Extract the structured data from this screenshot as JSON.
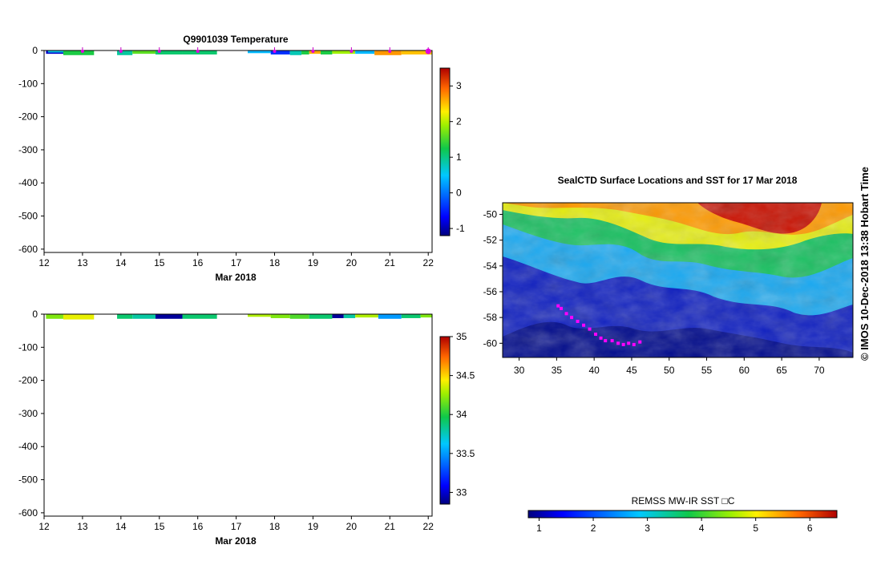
{
  "chart_data": [
    {
      "type": "heatmap",
      "title": "Q9901039  Temperature",
      "xlabel": "Mar 2018",
      "ylabel": "",
      "x_ticks": [
        12,
        13,
        14,
        15,
        16,
        17,
        18,
        19,
        20,
        21,
        22
      ],
      "xlim": [
        12,
        22.1
      ],
      "y_ticks": [
        0,
        -100,
        -200,
        -300,
        -400,
        -500,
        -600
      ],
      "ylim": [
        -610,
        0
      ],
      "profile_markers_x": [
        13.0,
        14.0,
        15.0,
        16.0,
        18.0,
        19.0,
        20.0,
        21.0,
        22.0
      ],
      "colorbar": {
        "ticks": [
          3,
          2,
          1,
          0,
          -1
        ],
        "range": [
          -1.2,
          3.5
        ]
      },
      "segments": [
        {
          "x0": 12.05,
          "x1": 12.5,
          "depth": -10,
          "value": -0.9
        },
        {
          "x0": 12.1,
          "x1": 12.5,
          "depth": -6,
          "value": 0.6
        },
        {
          "x0": 12.5,
          "x1": 13.3,
          "depth": -14,
          "value": 1.3
        },
        {
          "x0": 13.9,
          "x1": 14.3,
          "depth": -14,
          "value": 0.9
        },
        {
          "x0": 14.3,
          "x1": 14.9,
          "depth": -10,
          "value": 1.6
        },
        {
          "x0": 14.9,
          "x1": 15.6,
          "depth": -12,
          "value": 1.1
        },
        {
          "x0": 15.6,
          "x1": 16.5,
          "depth": -12,
          "value": 1.1
        },
        {
          "x0": 17.3,
          "x1": 17.9,
          "depth": -8,
          "value": 0.4
        },
        {
          "x0": 17.9,
          "x1": 18.4,
          "depth": -12,
          "value": -0.4
        },
        {
          "x0": 18.4,
          "x1": 18.7,
          "depth": -14,
          "value": 0.8
        },
        {
          "x0": 18.7,
          "x1": 18.9,
          "depth": -12,
          "value": 1.3
        },
        {
          "x0": 18.9,
          "x1": 19.2,
          "depth": -10,
          "value": 2.6
        },
        {
          "x0": 19.2,
          "x1": 19.5,
          "depth": -12,
          "value": 1.3
        },
        {
          "x0": 19.5,
          "x1": 20.1,
          "depth": -10,
          "value": 1.9
        },
        {
          "x0": 20.1,
          "x1": 20.6,
          "depth": -10,
          "value": 0.4
        },
        {
          "x0": 20.6,
          "x1": 21.3,
          "depth": -14,
          "value": 2.7
        },
        {
          "x0": 21.3,
          "x1": 22.1,
          "depth": -12,
          "value": 2.5
        }
      ]
    },
    {
      "type": "heatmap",
      "title": "",
      "xlabel": "Mar 2018",
      "ylabel": "",
      "x_ticks": [
        12,
        13,
        14,
        15,
        16,
        17,
        18,
        19,
        20,
        21,
        22
      ],
      "xlim": [
        12,
        22.1
      ],
      "y_ticks": [
        0,
        -100,
        -200,
        -300,
        -400,
        -500,
        -600
      ],
      "ylim": [
        -610,
        0
      ],
      "colorbar": {
        "ticks": [
          35,
          34.5,
          34,
          33.5,
          33
        ],
        "range": [
          32.85,
          35.0
        ]
      },
      "segments": [
        {
          "x0": 12.05,
          "x1": 12.5,
          "depth": -14,
          "value": 34.2
        },
        {
          "x0": 12.5,
          "x1": 13.3,
          "depth": -16,
          "value": 34.4
        },
        {
          "x0": 13.9,
          "x1": 14.3,
          "depth": -14,
          "value": 33.9
        },
        {
          "x0": 14.3,
          "x1": 14.9,
          "depth": -14,
          "value": 33.8
        },
        {
          "x0": 14.9,
          "x1": 15.6,
          "depth": -14,
          "value": 32.9
        },
        {
          "x0": 15.6,
          "x1": 16.5,
          "depth": -14,
          "value": 33.9
        },
        {
          "x0": 17.3,
          "x1": 17.9,
          "depth": -8,
          "value": 34.3
        },
        {
          "x0": 17.9,
          "x1": 18.4,
          "depth": -12,
          "value": 34.2
        },
        {
          "x0": 18.4,
          "x1": 18.9,
          "depth": -14,
          "value": 34.1
        },
        {
          "x0": 18.9,
          "x1": 19.5,
          "depth": -14,
          "value": 33.9
        },
        {
          "x0": 19.5,
          "x1": 19.8,
          "depth": -12,
          "value": 32.9
        },
        {
          "x0": 19.8,
          "x1": 20.1,
          "depth": -12,
          "value": 33.8
        },
        {
          "x0": 20.1,
          "x1": 20.7,
          "depth": -10,
          "value": 34.3
        },
        {
          "x0": 20.7,
          "x1": 21.3,
          "depth": -14,
          "value": 33.5
        },
        {
          "x0": 21.3,
          "x1": 21.8,
          "depth": -12,
          "value": 33.9
        },
        {
          "x0": 21.8,
          "x1": 22.1,
          "depth": -10,
          "value": 34.2
        }
      ]
    },
    {
      "type": "heatmap",
      "title": "SealCTD Surface Locations and SST for 17 Mar 2018",
      "xlabel": "",
      "ylabel": "",
      "x_ticks": [
        30,
        35,
        40,
        45,
        50,
        55,
        60,
        65,
        70
      ],
      "xlim": [
        27.8,
        74.5
      ],
      "y_ticks": [
        -50,
        -52,
        -54,
        -56,
        -58,
        -60
      ],
      "ylim": [
        -61.1,
        -49.1
      ],
      "colorbar": {
        "label": "REMSS MW-IR SST □C",
        "ticks": [
          1,
          2,
          3,
          4,
          5,
          6
        ],
        "range": [
          0.8,
          6.5
        ]
      },
      "track": [
        {
          "lon": 35.2,
          "lat": -57.1
        },
        {
          "lon": 35.6,
          "lat": -57.3
        },
        {
          "lon": 36.3,
          "lat": -57.7
        },
        {
          "lon": 37.0,
          "lat": -58.0
        },
        {
          "lon": 37.8,
          "lat": -58.3
        },
        {
          "lon": 38.6,
          "lat": -58.6
        },
        {
          "lon": 39.4,
          "lat": -58.9
        },
        {
          "lon": 40.2,
          "lat": -59.3
        },
        {
          "lon": 40.9,
          "lat": -59.6
        },
        {
          "lon": 41.5,
          "lat": -59.8
        },
        {
          "lon": 42.4,
          "lat": -59.8
        },
        {
          "lon": 43.2,
          "lat": -60.0
        },
        {
          "lon": 43.9,
          "lat": -60.1
        },
        {
          "lon": 44.6,
          "lat": -60.0
        },
        {
          "lon": 45.3,
          "lat": -60.1
        },
        {
          "lon": 46.1,
          "lat": -59.9
        }
      ]
    }
  ],
  "credit": "© IMOS 10-Dec-2018 13:38 Hobart Time"
}
